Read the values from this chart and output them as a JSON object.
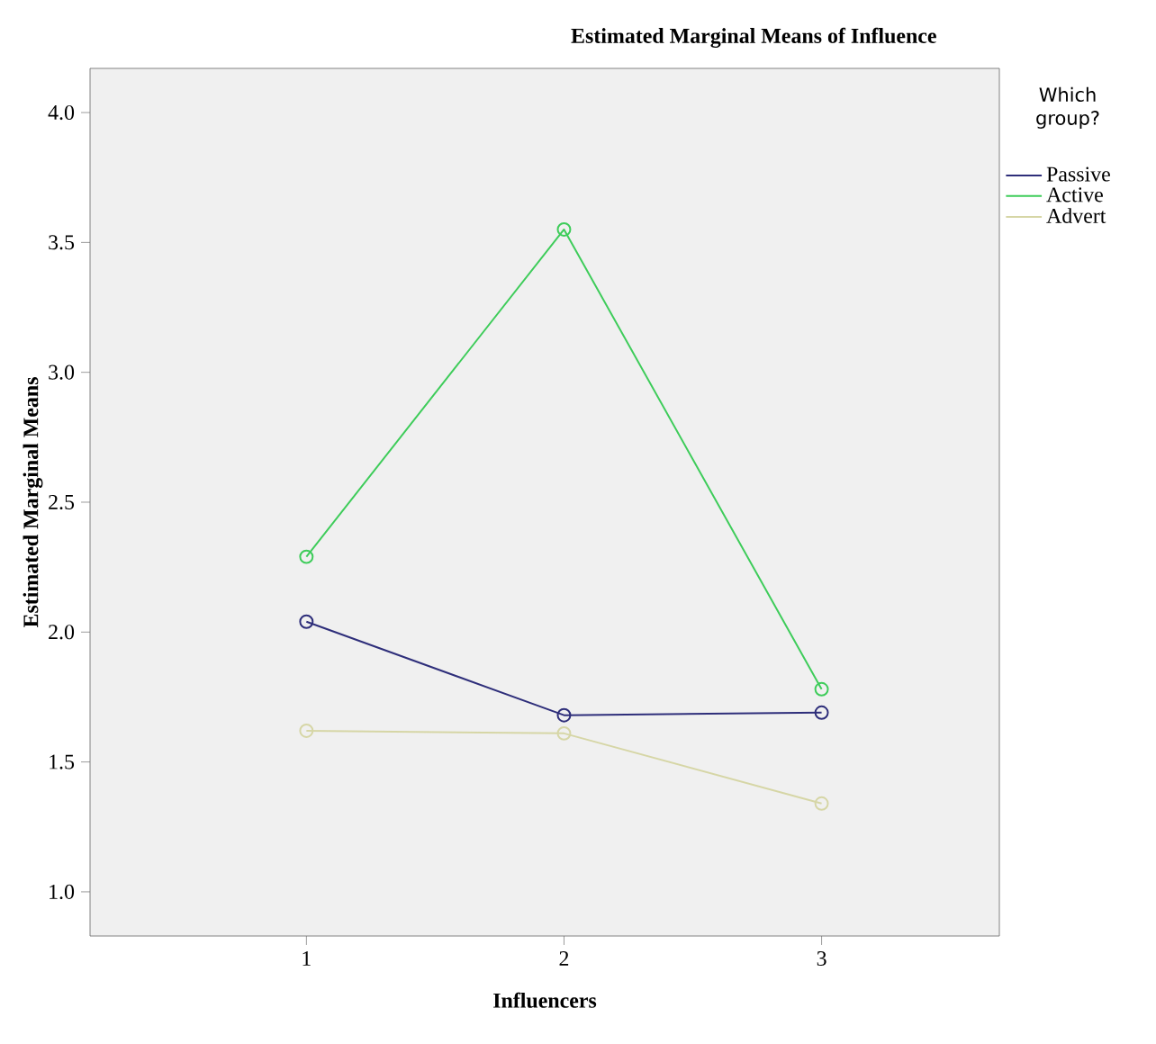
{
  "chart_data": {
    "type": "line",
    "title": "Estimated Marginal Means of Influence",
    "xlabel": "Influencers",
    "ylabel": "Estimated Marginal Means",
    "legend_title": "Which group?",
    "x": [
      1,
      2,
      3
    ],
    "series": [
      {
        "name": "Passive",
        "color": "#2e2e7a",
        "values": [
          2.04,
          1.68,
          1.69
        ]
      },
      {
        "name": "Active",
        "color": "#3ecc5a",
        "values": [
          2.29,
          3.55,
          1.78
        ]
      },
      {
        "name": "Advert",
        "color": "#d6d6a6",
        "values": [
          1.62,
          1.61,
          1.34
        ]
      }
    ],
    "xlim": [
      0.16,
      3.69
    ],
    "ylim": [
      0.83,
      4.17
    ],
    "xticks": [
      1,
      2,
      3
    ],
    "yticks": [
      {
        "value": 1,
        "label": "1.0"
      },
      {
        "value": 1.5,
        "label": "1.5"
      },
      {
        "value": 2,
        "label": "2.0"
      },
      {
        "value": 2.5,
        "label": "2.5"
      },
      {
        "value": 3,
        "label": "3.0"
      },
      {
        "value": 3.5,
        "label": "3.5"
      },
      {
        "value": 4,
        "label": "4.0"
      }
    ],
    "marker": "circle",
    "legend": "top right",
    "grid": false
  }
}
